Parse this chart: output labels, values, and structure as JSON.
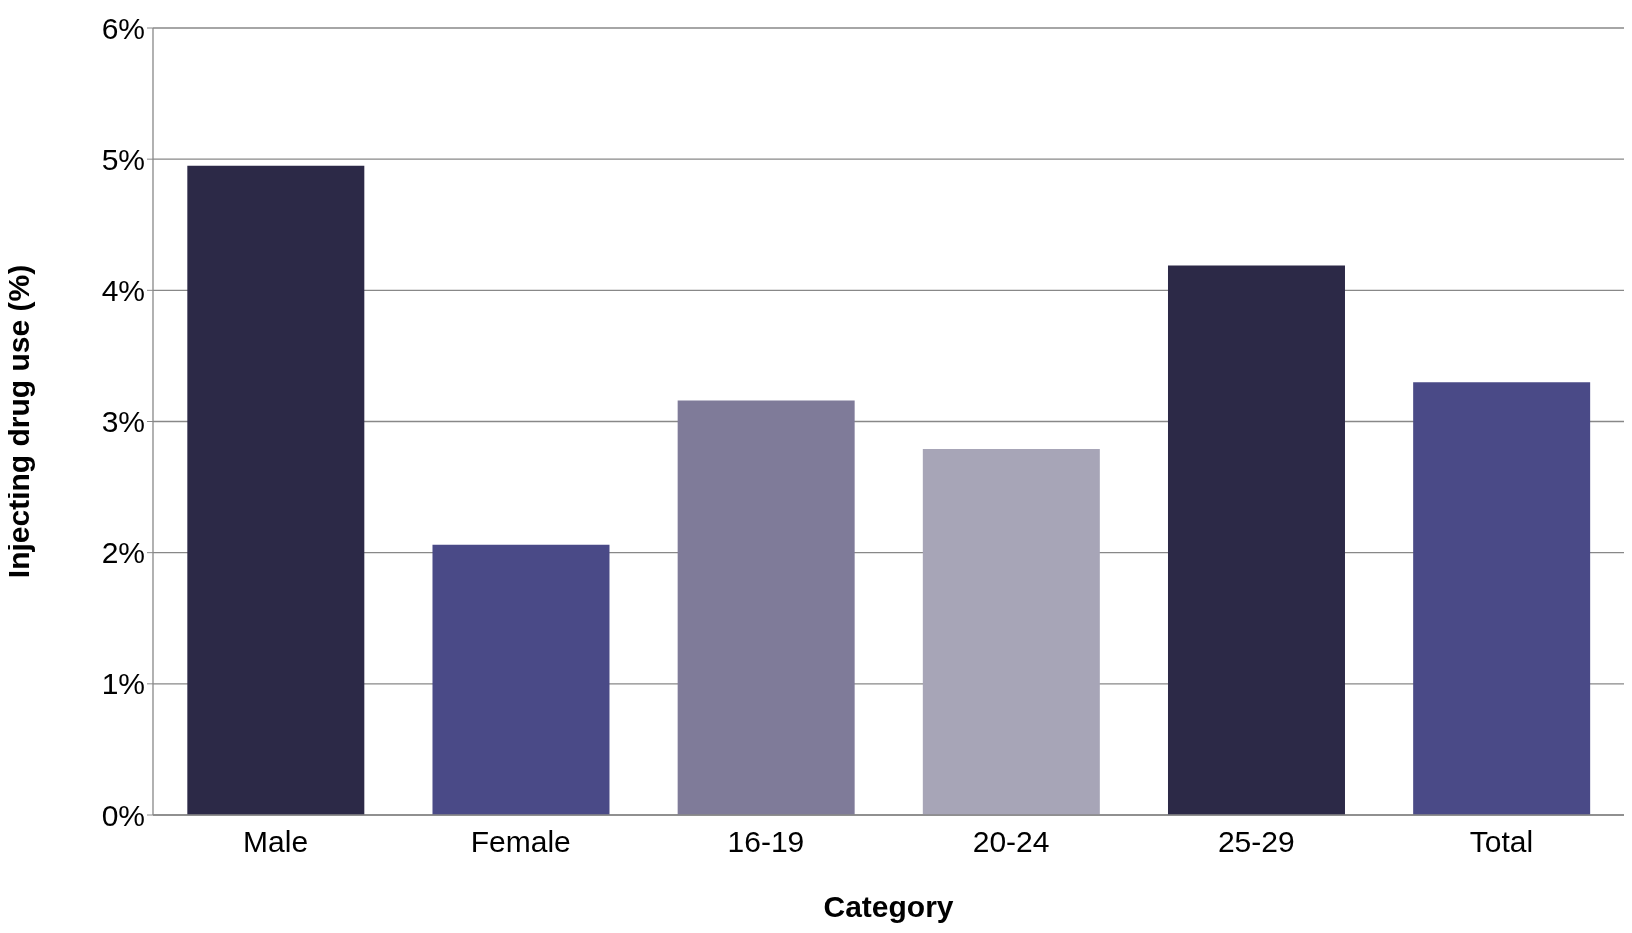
{
  "chart_data": {
    "type": "bar",
    "xlabel": "Category",
    "ylabel": "Injecting drug use (%)",
    "categories": [
      "Male",
      "Female",
      "16-19",
      "20-24",
      "25-29",
      "Total"
    ],
    "values": [
      4.95,
      2.06,
      3.16,
      2.79,
      4.19,
      3.3
    ],
    "colors": [
      "#2c2947",
      "#4a4a87",
      "#7f7b99",
      "#a7a5b7",
      "#2c2947",
      "#4a4a87"
    ],
    "ylim": [
      0,
      6
    ],
    "yticks": [
      {
        "value": 0,
        "label": "0%"
      },
      {
        "value": 1,
        "label": "1%"
      },
      {
        "value": 2,
        "label": "2%"
      },
      {
        "value": 3,
        "label": "3%"
      },
      {
        "value": 4,
        "label": "4%"
      },
      {
        "value": 5,
        "label": "5%"
      },
      {
        "value": 6,
        "label": "6%"
      }
    ],
    "grid": "y"
  }
}
